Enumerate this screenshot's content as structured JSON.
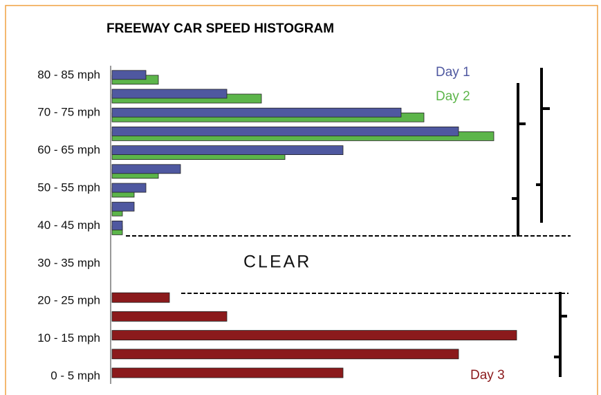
{
  "chart_data": {
    "type": "bar",
    "orientation": "horizontal",
    "title": "FREEWAY CAR SPEED HISTOGRAM",
    "annotation": "CLEAR",
    "categories": [
      "0 - 5 mph",
      null,
      "10 - 15 mph",
      null,
      "20 - 25 mph",
      null,
      "30 - 35 mph",
      null,
      "40 - 45 mph",
      null,
      "50 - 55 mph",
      null,
      "60 - 65 mph",
      null,
      "70 - 75 mph",
      null,
      "80 - 85 mph"
    ],
    "series": [
      {
        "name": "Day 1",
        "color": "#4f58a0",
        "values": [
          null,
          null,
          null,
          null,
          null,
          null,
          null,
          null,
          15,
          32,
          49,
          99,
          334,
          501,
          418,
          166,
          49
        ]
      },
      {
        "name": "Day 2",
        "color": "#5cb54a",
        "values": [
          null,
          null,
          null,
          null,
          null,
          null,
          null,
          null,
          15,
          15,
          32,
          67,
          250,
          552,
          451,
          216,
          67
        ]
      },
      {
        "name": "Day 3",
        "color": "#8b1a1c",
        "values": [
          334,
          501,
          585,
          166,
          83,
          null,
          null,
          null,
          null,
          null,
          null,
          null,
          null,
          null,
          null,
          null,
          null
        ]
      }
    ]
  }
}
